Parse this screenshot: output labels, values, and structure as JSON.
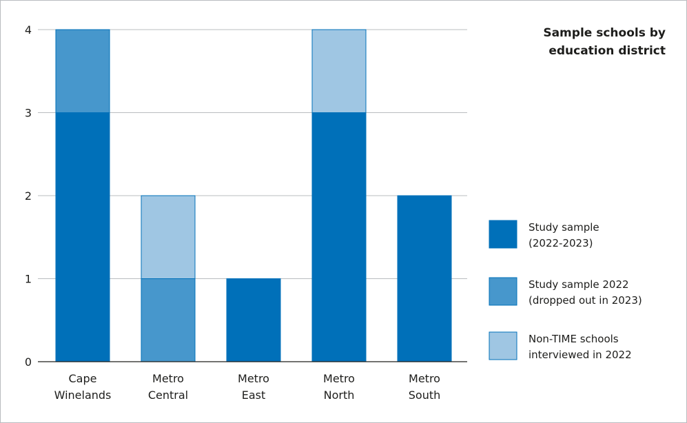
{
  "chart_data": {
    "type": "bar",
    "stacked": true,
    "title": [
      "Sample schools by",
      "education district"
    ],
    "categories": [
      [
        "Cape",
        "Winelands"
      ],
      [
        "Metro",
        "Central"
      ],
      [
        "Metro",
        "East"
      ],
      [
        "Metro",
        "North"
      ],
      [
        "Metro",
        "South"
      ]
    ],
    "series": [
      {
        "name": [
          "Study sample",
          "(2022-2023)"
        ],
        "color": "#0070b9",
        "values": [
          3,
          0,
          1,
          3,
          2
        ]
      },
      {
        "name": [
          "Study sample 2022",
          "(dropped out in 2023)"
        ],
        "color": "#4797cc",
        "values": [
          1,
          1,
          0,
          0,
          0
        ]
      },
      {
        "name": [
          "Non-TIME schools",
          "interviewed in 2022"
        ],
        "color": "#9fc6e3",
        "values": [
          0,
          1,
          0,
          1,
          0
        ]
      }
    ],
    "ylim": [
      0,
      4
    ],
    "yticks": [
      0,
      1,
      2,
      3,
      4
    ],
    "grid": true,
    "legend_position": "right"
  }
}
